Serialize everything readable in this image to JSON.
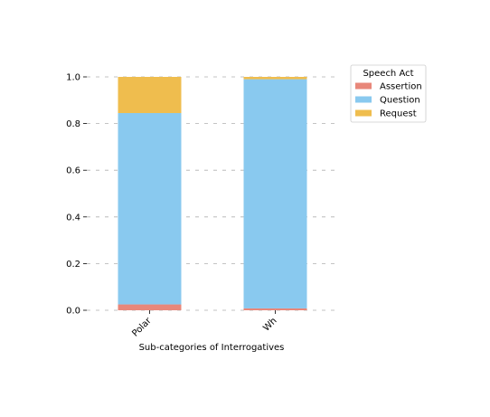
{
  "chart_data": {
    "type": "bar",
    "stacked": true,
    "categories": [
      "Polar",
      "Wh"
    ],
    "series": [
      {
        "name": "Assertion",
        "color": "#e8877a",
        "values": [
          0.025,
          0.008
        ]
      },
      {
        "name": "Question",
        "color": "#89c9ef",
        "values": [
          0.82,
          0.982
        ]
      },
      {
        "name": "Request",
        "color": "#efbd4e",
        "values": [
          0.155,
          0.01
        ]
      }
    ],
    "xlabel": "Sub-categories of Interrogatives",
    "ylabel": "",
    "ylim": [
      0,
      1
    ],
    "yticks": [
      "0.0",
      "0.2",
      "0.4",
      "0.6",
      "0.8",
      "1.0"
    ],
    "grid": "y-dashed",
    "legend": {
      "title": "Speech Act",
      "placement": "outside-top-right"
    }
  }
}
